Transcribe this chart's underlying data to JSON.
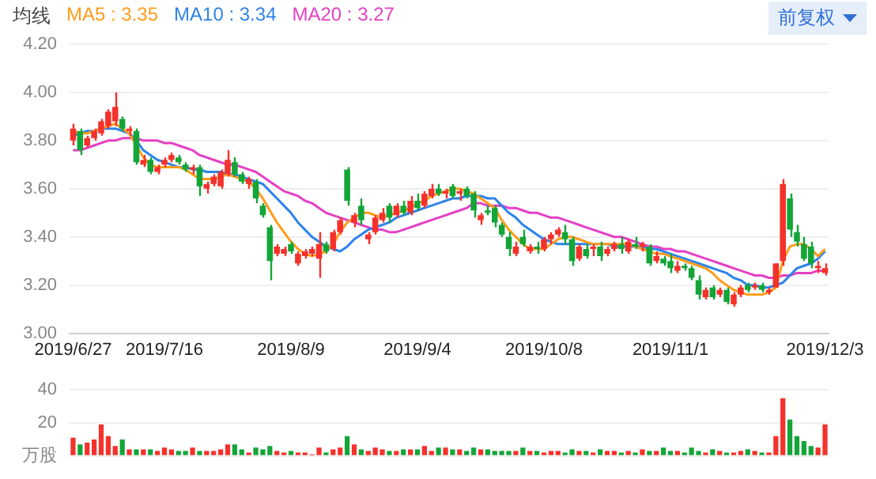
{
  "chart_data": [
    {
      "type": "candlestick",
      "legend": "top left",
      "legend_title": "均线",
      "annotations": [
        "前复权"
      ],
      "grid": "y",
      "colors": [
        "#f5312b",
        "#13a538",
        "#f5312b",
        "#f5312b",
        "#f5312b",
        "#f5312b",
        "#f5312b",
        "#13a538",
        "#f5312b",
        "#13a538",
        "#f5312b",
        "#13a538",
        "#f5312b",
        "#f5312b",
        "#f5312b",
        "#13a538",
        "#13a538",
        "#f5312b",
        "#13a538",
        "#f5312b",
        "#f5312b",
        "#f5312b",
        "#f5312b",
        "#13a538",
        "#13a538",
        "#f5312b",
        "#13a538",
        "#13a538",
        "#13a538",
        "#f5312b",
        "#f5312b",
        "#13a538",
        "#f5312b",
        "#f5312b",
        "#f5312b",
        "#f5312b",
        "#13a538",
        "#f5312b",
        "#f5312b",
        "#13a538",
        "#f5312b",
        "#13a538",
        "#f5312b",
        "#f5312b",
        "#f5312b",
        "#13a538",
        "#f5312b",
        "#13a538",
        "#f5312b",
        "#13a538",
        "#f5312b",
        "#f5312b",
        "#13a538",
        "#f5312b",
        "#13a538",
        "#f5312b",
        "#13a538",
        "#13a538",
        "#f5312b",
        "#13a538",
        "#13a538",
        "#13a538",
        "#13a538",
        "#f5312b",
        "#13a538",
        "#f5312b",
        "#13a538",
        "#f5312b",
        "#f5312b",
        "#f5312b",
        "#13a538",
        "#13a538",
        "#f5312b",
        "#13a538",
        "#f5312b",
        "#13a538",
        "#f5312b",
        "#f5312b",
        "#13a538",
        "#f5312b",
        "#13a538",
        "#f5312b",
        "#13a538",
        "#f5312b",
        "#13a538",
        "#13a538",
        "#f5312b",
        "#13a538",
        "#13a538",
        "#13a538",
        "#f5312b",
        "#13a538",
        "#f5312b",
        "#13a538",
        "#f5312b",
        "#f5312b",
        "#13a538",
        "#f5312b",
        "#13a538",
        "#f5312b",
        "#f5312b",
        "#f5312b",
        "#13a538",
        "#13a538",
        "#13a538",
        "#13a538",
        "#f5312b",
        "#f5312b"
      ],
      "categories": [
        "2019/6/27",
        null,
        null,
        null,
        null,
        null,
        null,
        null,
        null,
        null,
        null,
        null,
        null,
        "2019/7/16",
        null,
        null,
        null,
        null,
        null,
        null,
        null,
        null,
        null,
        null,
        null,
        null,
        null,
        null,
        null,
        null,
        null,
        "2019/8/9",
        null,
        null,
        null,
        null,
        null,
        null,
        null,
        null,
        null,
        null,
        null,
        null,
        null,
        null,
        null,
        null,
        null,
        "2019/9/4",
        null,
        null,
        null,
        null,
        null,
        null,
        null,
        null,
        null,
        null,
        null,
        null,
        null,
        null,
        null,
        null,
        null,
        "2019/10/8",
        null,
        null,
        null,
        null,
        null,
        null,
        null,
        null,
        null,
        null,
        null,
        null,
        null,
        null,
        null,
        null,
        null,
        "2019/11/1",
        null,
        null,
        null,
        null,
        null,
        null,
        null,
        null,
        null,
        null,
        null,
        null,
        null,
        null,
        null,
        null,
        null,
        null,
        null,
        null,
        null,
        "2019/12/3"
      ],
      "ohlc": [
        [
          3.8,
          3.87,
          3.78,
          3.85
        ],
        [
          3.84,
          3.85,
          3.74,
          3.76
        ],
        [
          3.78,
          3.82,
          3.77,
          3.81
        ],
        [
          3.81,
          3.85,
          3.8,
          3.84
        ],
        [
          3.83,
          3.89,
          3.82,
          3.88
        ],
        [
          3.86,
          3.93,
          3.85,
          3.92
        ],
        [
          3.88,
          4.0,
          3.86,
          3.94
        ],
        [
          3.89,
          3.9,
          3.84,
          3.85
        ],
        [
          3.84,
          3.86,
          3.82,
          3.85
        ],
        [
          3.84,
          3.85,
          3.7,
          3.71
        ],
        [
          3.7,
          3.74,
          3.69,
          3.72
        ],
        [
          3.72,
          3.73,
          3.66,
          3.67
        ],
        [
          3.67,
          3.7,
          3.66,
          3.69
        ],
        [
          3.7,
          3.73,
          3.69,
          3.72
        ],
        [
          3.72,
          3.75,
          3.71,
          3.74
        ],
        [
          3.73,
          3.74,
          3.7,
          3.71
        ],
        [
          3.7,
          3.71,
          3.67,
          3.68
        ],
        [
          3.68,
          3.7,
          3.66,
          3.69
        ],
        [
          3.69,
          3.7,
          3.57,
          3.61
        ],
        [
          3.6,
          3.63,
          3.58,
          3.62
        ],
        [
          3.62,
          3.66,
          3.61,
          3.65
        ],
        [
          3.61,
          3.68,
          3.6,
          3.67
        ],
        [
          3.66,
          3.76,
          3.65,
          3.72
        ],
        [
          3.71,
          3.73,
          3.65,
          3.66
        ],
        [
          3.66,
          3.67,
          3.62,
          3.63
        ],
        [
          3.62,
          3.65,
          3.6,
          3.64
        ],
        [
          3.63,
          3.64,
          3.54,
          3.56
        ],
        [
          3.53,
          3.54,
          3.48,
          3.49
        ],
        [
          3.44,
          3.45,
          3.22,
          3.3
        ],
        [
          3.33,
          3.37,
          3.32,
          3.36
        ],
        [
          3.33,
          3.36,
          3.32,
          3.35
        ],
        [
          3.37,
          3.38,
          3.33,
          3.34
        ],
        [
          3.29,
          3.34,
          3.28,
          3.33
        ],
        [
          3.32,
          3.35,
          3.31,
          3.34
        ],
        [
          3.33,
          3.36,
          3.32,
          3.35
        ],
        [
          3.31,
          3.42,
          3.23,
          3.37
        ],
        [
          3.37,
          3.38,
          3.33,
          3.34
        ],
        [
          3.35,
          3.43,
          3.34,
          3.42
        ],
        [
          3.42,
          3.48,
          3.41,
          3.47
        ],
        [
          3.68,
          3.69,
          3.53,
          3.55
        ],
        [
          3.46,
          3.5,
          3.44,
          3.49
        ],
        [
          3.53,
          3.56,
          3.45,
          3.47
        ],
        [
          3.39,
          3.42,
          3.37,
          3.41
        ],
        [
          3.42,
          3.49,
          3.41,
          3.48
        ],
        [
          3.47,
          3.52,
          3.46,
          3.5
        ],
        [
          3.53,
          3.54,
          3.46,
          3.48
        ],
        [
          3.49,
          3.54,
          3.48,
          3.53
        ],
        [
          3.53,
          3.55,
          3.49,
          3.5
        ],
        [
          3.5,
          3.57,
          3.49,
          3.55
        ],
        [
          3.55,
          3.58,
          3.51,
          3.52
        ],
        [
          3.53,
          3.59,
          3.52,
          3.58
        ],
        [
          3.57,
          3.62,
          3.56,
          3.6
        ],
        [
          3.6,
          3.62,
          3.57,
          3.58
        ],
        [
          3.58,
          3.6,
          3.56,
          3.59
        ],
        [
          3.61,
          3.62,
          3.56,
          3.57
        ],
        [
          3.58,
          3.6,
          3.55,
          3.59
        ],
        [
          3.6,
          3.61,
          3.56,
          3.57
        ],
        [
          3.58,
          3.59,
          3.48,
          3.51
        ],
        [
          3.47,
          3.5,
          3.45,
          3.49
        ],
        [
          3.51,
          3.53,
          3.49,
          3.5
        ],
        [
          3.52,
          3.53,
          3.44,
          3.46
        ],
        [
          3.45,
          3.46,
          3.4,
          3.41
        ],
        [
          3.4,
          3.42,
          3.32,
          3.35
        ],
        [
          3.33,
          3.38,
          3.32,
          3.36
        ],
        [
          3.4,
          3.43,
          3.36,
          3.37
        ],
        [
          3.34,
          3.37,
          3.33,
          3.36
        ],
        [
          3.36,
          3.38,
          3.33,
          3.35
        ],
        [
          3.35,
          3.4,
          3.34,
          3.39
        ],
        [
          3.39,
          3.42,
          3.37,
          3.41
        ],
        [
          3.41,
          3.44,
          3.4,
          3.43
        ],
        [
          3.42,
          3.45,
          3.37,
          3.39
        ],
        [
          3.39,
          3.4,
          3.28,
          3.3
        ],
        [
          3.31,
          3.37,
          3.3,
          3.36
        ],
        [
          3.35,
          3.37,
          3.31,
          3.32
        ],
        [
          3.35,
          3.37,
          3.32,
          3.36
        ],
        [
          3.36,
          3.38,
          3.3,
          3.32
        ],
        [
          3.33,
          3.36,
          3.32,
          3.35
        ],
        [
          3.35,
          3.38,
          3.34,
          3.37
        ],
        [
          3.37,
          3.4,
          3.33,
          3.35
        ],
        [
          3.34,
          3.39,
          3.33,
          3.38
        ],
        [
          3.37,
          3.4,
          3.35,
          3.36
        ],
        [
          3.36,
          3.38,
          3.34,
          3.37
        ],
        [
          3.36,
          3.37,
          3.28,
          3.29
        ],
        [
          3.3,
          3.34,
          3.29,
          3.32
        ],
        [
          3.31,
          3.32,
          3.28,
          3.29
        ],
        [
          3.3,
          3.33,
          3.25,
          3.27
        ],
        [
          3.26,
          3.3,
          3.25,
          3.28
        ],
        [
          3.28,
          3.29,
          3.26,
          3.27
        ],
        [
          3.27,
          3.28,
          3.22,
          3.23
        ],
        [
          3.22,
          3.24,
          3.14,
          3.16
        ],
        [
          3.15,
          3.19,
          3.14,
          3.18
        ],
        [
          3.19,
          3.2,
          3.14,
          3.15
        ],
        [
          3.16,
          3.19,
          3.15,
          3.18
        ],
        [
          3.18,
          3.19,
          3.12,
          3.13
        ],
        [
          3.12,
          3.17,
          3.11,
          3.16
        ],
        [
          3.16,
          3.2,
          3.15,
          3.19
        ],
        [
          3.2,
          3.21,
          3.17,
          3.18
        ],
        [
          3.19,
          3.21,
          3.18,
          3.2
        ],
        [
          3.2,
          3.21,
          3.17,
          3.18
        ],
        [
          3.17,
          3.19,
          3.16,
          3.18
        ],
        [
          3.19,
          3.29,
          3.19,
          3.29
        ],
        [
          3.3,
          3.64,
          3.28,
          3.62
        ],
        [
          3.56,
          3.58,
          3.4,
          3.43
        ],
        [
          3.42,
          3.45,
          3.36,
          3.38
        ],
        [
          3.37,
          3.4,
          3.3,
          3.31
        ],
        [
          3.36,
          3.38,
          3.27,
          3.29
        ],
        [
          3.27,
          3.3,
          3.25,
          3.28
        ],
        [
          3.25,
          3.29,
          3.24,
          3.27
        ]
      ],
      "series": [
        {
          "type": "line",
          "name": "MA5 : 3.35",
          "color": "#ff9c1a",
          "values": [
            3.84,
            3.83,
            3.83,
            3.84,
            3.85,
            3.86,
            3.87,
            3.85,
            3.83,
            3.78,
            3.73,
            3.7,
            3.69,
            3.69,
            3.69,
            3.69,
            3.68,
            3.66,
            3.64,
            3.64,
            3.64,
            3.65,
            3.66,
            3.65,
            3.64,
            3.63,
            3.6,
            3.56,
            3.51,
            3.46,
            3.42,
            3.38,
            3.35,
            3.33,
            3.32,
            3.33,
            3.34,
            3.37,
            3.42,
            3.46,
            3.48,
            3.5,
            3.5,
            3.49,
            3.48,
            3.49,
            3.5,
            3.51,
            3.52,
            3.54,
            3.55,
            3.57,
            3.58,
            3.59,
            3.6,
            3.6,
            3.59,
            3.58,
            3.56,
            3.54,
            3.52,
            3.47,
            3.43,
            3.4,
            3.37,
            3.35,
            3.35,
            3.35,
            3.37,
            3.39,
            3.4,
            3.4,
            3.39,
            3.38,
            3.37,
            3.37,
            3.37,
            3.37,
            3.37,
            3.37,
            3.36,
            3.35,
            3.34,
            3.33,
            3.33,
            3.32,
            3.31,
            3.3,
            3.29,
            3.28,
            3.27,
            3.25,
            3.22,
            3.2,
            3.18,
            3.17,
            3.16,
            3.16,
            3.16,
            3.17,
            3.19,
            3.3,
            3.36,
            3.37,
            3.37,
            3.35,
            3.32,
            3.35
          ]
        },
        {
          "type": "line",
          "name": "MA10 : 3.34",
          "color": "#2d83ea",
          "values": [
            3.82,
            3.83,
            3.84,
            3.84,
            3.85,
            3.85,
            3.85,
            3.84,
            3.83,
            3.8,
            3.76,
            3.74,
            3.72,
            3.71,
            3.7,
            3.69,
            3.69,
            3.68,
            3.68,
            3.67,
            3.67,
            3.67,
            3.66,
            3.66,
            3.65,
            3.64,
            3.63,
            3.62,
            3.59,
            3.56,
            3.53,
            3.5,
            3.46,
            3.43,
            3.4,
            3.38,
            3.36,
            3.35,
            3.34,
            3.36,
            3.39,
            3.41,
            3.43,
            3.44,
            3.45,
            3.46,
            3.48,
            3.49,
            3.5,
            3.51,
            3.52,
            3.53,
            3.54,
            3.55,
            3.56,
            3.56,
            3.57,
            3.57,
            3.57,
            3.56,
            3.56,
            3.53,
            3.5,
            3.48,
            3.45,
            3.43,
            3.41,
            3.39,
            3.38,
            3.37,
            3.37,
            3.37,
            3.37,
            3.37,
            3.37,
            3.37,
            3.37,
            3.36,
            3.36,
            3.36,
            3.36,
            3.36,
            3.35,
            3.35,
            3.34,
            3.33,
            3.32,
            3.31,
            3.3,
            3.29,
            3.28,
            3.27,
            3.26,
            3.25,
            3.23,
            3.22,
            3.2,
            3.2,
            3.19,
            3.19,
            3.2,
            3.21,
            3.24,
            3.27,
            3.28,
            3.29,
            3.31,
            3.34
          ]
        },
        {
          "type": "line",
          "name": "MA20 : 3.27",
          "color": "#e53fc4",
          "values": [
            3.76,
            3.76,
            3.77,
            3.78,
            3.79,
            3.8,
            3.8,
            3.81,
            3.81,
            3.81,
            3.8,
            3.8,
            3.8,
            3.79,
            3.79,
            3.78,
            3.77,
            3.76,
            3.74,
            3.73,
            3.72,
            3.71,
            3.7,
            3.7,
            3.69,
            3.68,
            3.67,
            3.65,
            3.63,
            3.61,
            3.59,
            3.58,
            3.57,
            3.55,
            3.54,
            3.52,
            3.5,
            3.49,
            3.48,
            3.47,
            3.46,
            3.45,
            3.44,
            3.43,
            3.43,
            3.42,
            3.42,
            3.43,
            3.44,
            3.45,
            3.46,
            3.47,
            3.48,
            3.49,
            3.5,
            3.51,
            3.52,
            3.54,
            3.54,
            3.53,
            3.53,
            3.53,
            3.52,
            3.52,
            3.51,
            3.5,
            3.5,
            3.49,
            3.48,
            3.48,
            3.47,
            3.46,
            3.45,
            3.44,
            3.43,
            3.42,
            3.41,
            3.4,
            3.4,
            3.39,
            3.38,
            3.37,
            3.36,
            3.36,
            3.35,
            3.35,
            3.34,
            3.34,
            3.33,
            3.32,
            3.31,
            3.3,
            3.29,
            3.28,
            3.27,
            3.26,
            3.25,
            3.24,
            3.24,
            3.23,
            3.23,
            3.24,
            3.24,
            3.25,
            3.25,
            3.25,
            3.26,
            3.26
          ]
        }
      ],
      "ylim": [
        3.0,
        4.2
      ],
      "yticks": [
        {
          "value": 3.0,
          "label": "3.00"
        },
        {
          "value": 3.2,
          "label": "3.20"
        },
        {
          "value": 3.4,
          "label": "3.40"
        },
        {
          "value": 3.6,
          "label": "3.60"
        },
        {
          "value": 3.8,
          "label": "3.80"
        },
        {
          "value": 4.0,
          "label": "4.00"
        },
        {
          "value": 4.2,
          "label": "4.20"
        }
      ]
    },
    {
      "type": "bar",
      "tick_labels": "y",
      "grid": "y",
      "categories": [
        "2019/6/27",
        null,
        null,
        null,
        null,
        null,
        null,
        null,
        null,
        null,
        null,
        null,
        null,
        "2019/7/16",
        null,
        null,
        null,
        null,
        null,
        null,
        null,
        null,
        null,
        null,
        null,
        null,
        null,
        null,
        null,
        null,
        null,
        "2019/8/9",
        null,
        null,
        null,
        null,
        null,
        null,
        null,
        null,
        null,
        null,
        null,
        null,
        null,
        null,
        null,
        null,
        null,
        "2019/9/4",
        null,
        null,
        null,
        null,
        null,
        null,
        null,
        null,
        null,
        null,
        null,
        null,
        null,
        null,
        null,
        null,
        null,
        "2019/10/8",
        null,
        null,
        null,
        null,
        null,
        null,
        null,
        null,
        null,
        null,
        null,
        null,
        null,
        null,
        null,
        null,
        null,
        "2019/11/1",
        null,
        null,
        null,
        null,
        null,
        null,
        null,
        null,
        null,
        null,
        null,
        null,
        null,
        null,
        null,
        null,
        null,
        null,
        null,
        null,
        null,
        "2019/12/3"
      ],
      "values": [
        11,
        7,
        8,
        10,
        19,
        12,
        6,
        10,
        4,
        4,
        4,
        4,
        3,
        5,
        4,
        3,
        3,
        5,
        3,
        3,
        3,
        4,
        7,
        7,
        4,
        2,
        5,
        4,
        6,
        3,
        2,
        3,
        2,
        2,
        1,
        5,
        2,
        4,
        5,
        12,
        7,
        4,
        3,
        5,
        4,
        3,
        3,
        4,
        4,
        4,
        6,
        3,
        5,
        5,
        4,
        4,
        3,
        5,
        4,
        4,
        3,
        3,
        3,
        3,
        5,
        3,
        3,
        2,
        3,
        3,
        2,
        4,
        3,
        3,
        2,
        4,
        3,
        3,
        2,
        3,
        2,
        4,
        3,
        3,
        5,
        3,
        3,
        2,
        5,
        3,
        2,
        4,
        3,
        2,
        2,
        3,
        4,
        3,
        2,
        2,
        12,
        35,
        22,
        12,
        9,
        6,
        5,
        19
      ],
      "colors": [
        "#f5312b",
        "#13a538",
        "#f5312b",
        "#f5312b",
        "#f5312b",
        "#f5312b",
        "#f5312b",
        "#13a538",
        "#f5312b",
        "#13a538",
        "#f5312b",
        "#13a538",
        "#f5312b",
        "#f5312b",
        "#f5312b",
        "#13a538",
        "#13a538",
        "#f5312b",
        "#13a538",
        "#f5312b",
        "#f5312b",
        "#f5312b",
        "#f5312b",
        "#13a538",
        "#13a538",
        "#f5312b",
        "#13a538",
        "#13a538",
        "#13a538",
        "#f5312b",
        "#f5312b",
        "#13a538",
        "#f5312b",
        "#f5312b",
        "#f5312b",
        "#f5312b",
        "#13a538",
        "#f5312b",
        "#f5312b",
        "#13a538",
        "#f5312b",
        "#13a538",
        "#f5312b",
        "#f5312b",
        "#f5312b",
        "#13a538",
        "#f5312b",
        "#13a538",
        "#f5312b",
        "#13a538",
        "#f5312b",
        "#f5312b",
        "#13a538",
        "#f5312b",
        "#13a538",
        "#f5312b",
        "#13a538",
        "#13a538",
        "#f5312b",
        "#13a538",
        "#13a538",
        "#13a538",
        "#13a538",
        "#f5312b",
        "#13a538",
        "#f5312b",
        "#13a538",
        "#f5312b",
        "#f5312b",
        "#f5312b",
        "#13a538",
        "#13a538",
        "#f5312b",
        "#13a538",
        "#f5312b",
        "#13a538",
        "#f5312b",
        "#f5312b",
        "#13a538",
        "#f5312b",
        "#13a538",
        "#f5312b",
        "#13a538",
        "#f5312b",
        "#13a538",
        "#13a538",
        "#f5312b",
        "#13a538",
        "#13a538",
        "#13a538",
        "#f5312b",
        "#13a538",
        "#f5312b",
        "#13a538",
        "#f5312b",
        "#f5312b",
        "#13a538",
        "#f5312b",
        "#13a538",
        "#f5312b",
        "#f5312b",
        "#f5312b",
        "#13a538",
        "#13a538",
        "#13a538",
        "#13a538",
        "#f5312b",
        "#f5312b"
      ],
      "ylim": [
        0,
        40
      ],
      "yticks": [
        {
          "value": 0,
          "label": "万股"
        },
        20,
        40
      ]
    }
  ]
}
